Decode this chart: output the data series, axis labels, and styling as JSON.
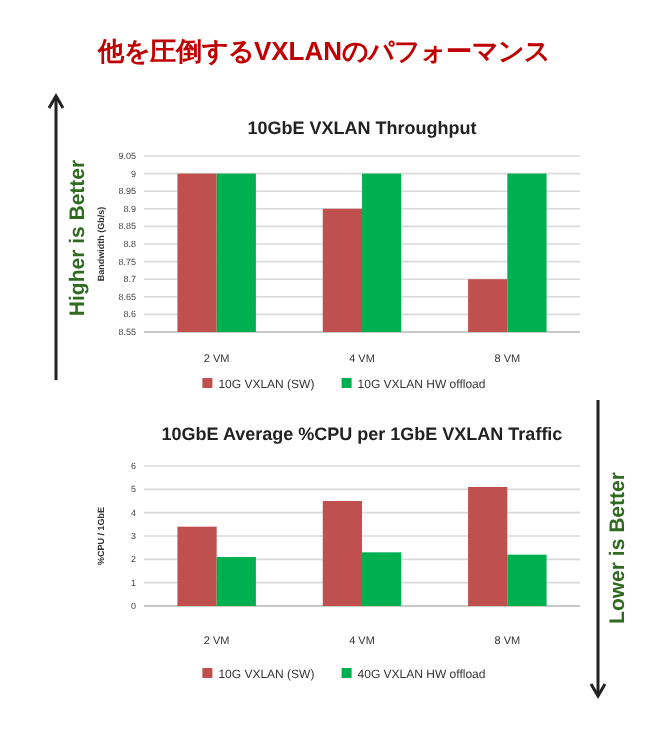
{
  "chart_data": [
    {
      "type": "bar",
      "title": "10GbE VXLAN Throughput",
      "ylabel": "Bandwidth (Gb/s)",
      "annotations": [
        "他を圧倒するVXLANのパフォーマンス",
        "Higher is Better"
      ],
      "categories": [
        "2 VM",
        "4 VM",
        "8 VM"
      ],
      "series": [
        {
          "name": "10G VXLAN (SW)",
          "color": "#c0504d",
          "values": [
            9,
            8.9,
            8.7
          ]
        },
        {
          "name": "10G VXLAN HW offload",
          "color": "#00b050",
          "values": [
            9,
            9,
            9
          ]
        }
      ],
      "ylim": [
        8.55,
        9.05
      ],
      "yticks": [
        8.55,
        8.6,
        8.65,
        8.7,
        8.75,
        8.8,
        8.85,
        8.9,
        8.95,
        9,
        9.05
      ],
      "grid": "y",
      "legend": "bottom"
    },
    {
      "type": "bar",
      "title": "10GbE Average %CPU per 1GbE VXLAN Traffic",
      "ylabel": "%CPU / 1GbE",
      "annotations": [
        "Lower is Better"
      ],
      "categories": [
        "2 VM",
        "4 VM",
        "8 VM"
      ],
      "series": [
        {
          "name": "10G VXLAN (SW)",
          "color": "#c0504d",
          "values": [
            3.4,
            4.5,
            5.1
          ]
        },
        {
          "name": "40G VXLAN HW offload",
          "color": "#00b050",
          "values": [
            2.1,
            2.3,
            2.2
          ]
        }
      ],
      "ylim": [
        0,
        6
      ],
      "yticks": [
        0,
        1,
        2,
        3,
        4,
        5,
        6
      ],
      "grid": "y",
      "legend": "bottom"
    }
  ]
}
